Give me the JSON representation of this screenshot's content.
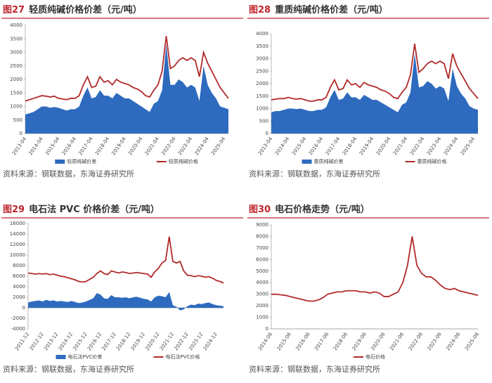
{
  "chart_data": [
    {
      "type": "line",
      "figure_label": "图27",
      "title": "轻质纯碱价格价差（元/吨）",
      "source": "资料来源：钢联数据，东海证券研究所",
      "categories": [
        "2013-04",
        null,
        null,
        null,
        "2014-04",
        null,
        null,
        null,
        "2015-04",
        null,
        null,
        null,
        "2016-04",
        null,
        null,
        null,
        "2017-04",
        null,
        null,
        null,
        "2018-04",
        null,
        null,
        null,
        "2019-04",
        null,
        null,
        null,
        "2020-04",
        null,
        null,
        null,
        "2021-04",
        null,
        null,
        null,
        "2022-04",
        null,
        null,
        null,
        "2023-04",
        null,
        null,
        null,
        "2024-04",
        null,
        null,
        null,
        "2025-04",
        null
      ],
      "ylim": [
        0,
        4000
      ],
      "yticks": [
        0,
        500,
        1000,
        1500,
        2000,
        2500,
        3000,
        3500,
        4000
      ],
      "series": [
        {
          "name": "轻质纯碱价差",
          "color": "#2e6bbf",
          "area": true,
          "values": [
            700,
            750,
            800,
            900,
            1000,
            1000,
            950,
            980,
            950,
            900,
            850,
            900,
            900,
            1000,
            1400,
            1700,
            1300,
            1350,
            1600,
            1400,
            1400,
            1300,
            1500,
            1400,
            1300,
            1300,
            1200,
            1100,
            1000,
            900,
            800,
            1100,
            1200,
            1600,
            3300,
            1800,
            1800,
            2000,
            1900,
            1700,
            1800,
            1700,
            1200,
            2500,
            1800,
            1500,
            1300,
            1000,
            950,
            900
          ]
        },
        {
          "name": "轻质纯碱价格",
          "color": "#b22a2a",
          "area": false,
          "values": [
            1200,
            1250,
            1300,
            1350,
            1400,
            1380,
            1350,
            1380,
            1300,
            1280,
            1250,
            1300,
            1300,
            1400,
            1800,
            2100,
            1700,
            1750,
            2100,
            1900,
            1950,
            1800,
            2000,
            1900,
            1850,
            1800,
            1700,
            1650,
            1550,
            1400,
            1350,
            1600,
            1800,
            2300,
            3600,
            2400,
            2500,
            2700,
            2800,
            2700,
            2800,
            2700,
            2100,
            3000,
            2600,
            2300,
            2000,
            1700,
            1500,
            1300
          ]
        }
      ]
    },
    {
      "type": "line",
      "figure_label": "图28",
      "title": "重质纯碱价格价差（元/吨）",
      "source": "资料来源：钢联数据，东海证券研究所",
      "categories": [
        "2013-04",
        null,
        null,
        null,
        "2014-04",
        null,
        null,
        null,
        "2015-04",
        null,
        null,
        null,
        "2016-04",
        null,
        null,
        null,
        "2017-04",
        null,
        null,
        null,
        "2018-04",
        null,
        null,
        null,
        "2019-04",
        null,
        null,
        null,
        "2020-04",
        null,
        null,
        null,
        "2021-04",
        null,
        null,
        null,
        "2022-04",
        null,
        null,
        null,
        "2023-04",
        null,
        null,
        null,
        "2024-04",
        null,
        null,
        null,
        "2025-04",
        null
      ],
      "ylim": [
        0,
        4000
      ],
      "yticks": [
        0,
        500,
        1000,
        1500,
        2000,
        2500,
        3000,
        3500,
        4000
      ],
      "series": [
        {
          "name": "重质纯碱价差",
          "color": "#2e6bbf",
          "area": true,
          "values": [
            850,
            900,
            900,
            950,
            1000,
            1000,
            980,
            1000,
            950,
            900,
            900,
            950,
            950,
            1050,
            1450,
            1750,
            1350,
            1400,
            1650,
            1450,
            1450,
            1350,
            1550,
            1450,
            1350,
            1350,
            1250,
            1150,
            1050,
            950,
            850,
            1150,
            1250,
            1650,
            3200,
            1850,
            1900,
            2100,
            2000,
            1800,
            1900,
            1800,
            1300,
            2600,
            1900,
            1600,
            1400,
            1100,
            1000,
            950
          ]
        },
        {
          "name": "重质纯碱价格",
          "color": "#b22a2a",
          "area": false,
          "values": [
            1350,
            1380,
            1400,
            1400,
            1450,
            1400,
            1380,
            1400,
            1350,
            1300,
            1300,
            1350,
            1350,
            1450,
            1850,
            2150,
            1750,
            1800,
            2150,
            1950,
            2000,
            1850,
            2050,
            1950,
            1900,
            1850,
            1750,
            1700,
            1600,
            1450,
            1400,
            1650,
            1850,
            2350,
            3600,
            2450,
            2600,
            2800,
            2900,
            2800,
            2900,
            2800,
            2200,
            3200,
            2700,
            2400,
            2100,
            1800,
            1600,
            1400
          ]
        }
      ]
    },
    {
      "type": "line",
      "figure_label": "图29",
      "title": "电石法 PVC 价格价差（元/吨）",
      "source": "资料来源：钢联数据，东海证券研究所",
      "categories": [
        "2011-12",
        null,
        null,
        null,
        "2012-12",
        null,
        null,
        null,
        "2013-12",
        null,
        null,
        null,
        "2014-12",
        null,
        null,
        null,
        "2015-12",
        null,
        null,
        null,
        "2016-12",
        null,
        null,
        null,
        "2017-12",
        null,
        null,
        null,
        "2018-12",
        null,
        null,
        null,
        "2019-12",
        null,
        null,
        null,
        "2020-12",
        null,
        null,
        null,
        "2021-12",
        null,
        null,
        null,
        "2022-12",
        null,
        null,
        null,
        "2023-12",
        null,
        null,
        null,
        "2024-12",
        null,
        null
      ],
      "ylim": [
        -4000,
        16000
      ],
      "yticks": [
        -4000,
        -2000,
        0,
        2000,
        4000,
        6000,
        8000,
        10000,
        12000,
        14000,
        16000
      ],
      "series": [
        {
          "name": "电石法PVC价差",
          "color": "#2e6bbf",
          "area": true,
          "values": [
            1000,
            1200,
            1300,
            1400,
            1200,
            1500,
            1300,
            1400,
            1200,
            1300,
            1200,
            1100,
            1300,
            1100,
            900,
            1000,
            1200,
            1500,
            1800,
            2800,
            2500,
            1800,
            1700,
            2400,
            2000,
            2000,
            1900,
            2000,
            1800,
            2000,
            2100,
            1900,
            1700,
            1600,
            1200,
            2000,
            2300,
            2200,
            2000,
            3000,
            500,
            200,
            -500,
            -300,
            300,
            600,
            500,
            800,
            700,
            900,
            1000,
            700,
            500,
            400,
            300
          ]
        },
        {
          "name": "电石法PVC价格",
          "color": "#b22a2a",
          "area": false,
          "values": [
            6600,
            6500,
            6400,
            6500,
            6400,
            6500,
            6300,
            6400,
            6200,
            6000,
            5900,
            5700,
            5500,
            5300,
            5000,
            4900,
            5000,
            5400,
            5800,
            6500,
            7000,
            6500,
            6300,
            7000,
            6800,
            6600,
            6800,
            6700,
            6500,
            6600,
            6700,
            6600,
            6500,
            6400,
            5800,
            6800,
            7500,
            8500,
            9000,
            13500,
            8800,
            8500,
            8800,
            7000,
            6200,
            6100,
            5900,
            6100,
            6000,
            5800,
            5900,
            5600,
            5200,
            5000,
            4700
          ]
        }
      ]
    },
    {
      "type": "line",
      "figure_label": "图30",
      "title": "电石价格走势（元/吨）",
      "source": "资料来源：钢联数据，东海证券研究所",
      "categories": [
        "2014-06",
        null,
        null,
        null,
        "2015-06",
        null,
        null,
        null,
        "2016-06",
        null,
        null,
        null,
        "2017-06",
        null,
        null,
        null,
        "2018-06",
        null,
        null,
        null,
        "2019-06",
        null,
        null,
        null,
        "2020-06",
        null,
        null,
        null,
        "2021-06",
        null,
        null,
        null,
        "2022-06",
        null,
        null,
        null,
        "2023-06",
        null,
        null,
        null,
        "2024-06",
        null,
        null,
        null,
        "2025-06"
      ],
      "ylim": [
        0,
        9000
      ],
      "yticks": [
        0,
        1000,
        2000,
        3000,
        4000,
        5000,
        6000,
        7000,
        8000,
        9000
      ],
      "series": [
        {
          "name": "电石价格",
          "color": "#b22a2a",
          "area": false,
          "values": [
            3000,
            3000,
            2950,
            2900,
            2800,
            2700,
            2600,
            2500,
            2400,
            2400,
            2500,
            2700,
            3000,
            3100,
            3200,
            3200,
            3300,
            3300,
            3300,
            3200,
            3200,
            3100,
            3200,
            3100,
            2800,
            2800,
            3000,
            3200,
            4000,
            5500,
            8000,
            5500,
            4800,
            4500,
            4500,
            4200,
            3800,
            3500,
            3400,
            3500,
            3300,
            3200,
            3100,
            3000,
            2900
          ]
        }
      ]
    }
  ]
}
